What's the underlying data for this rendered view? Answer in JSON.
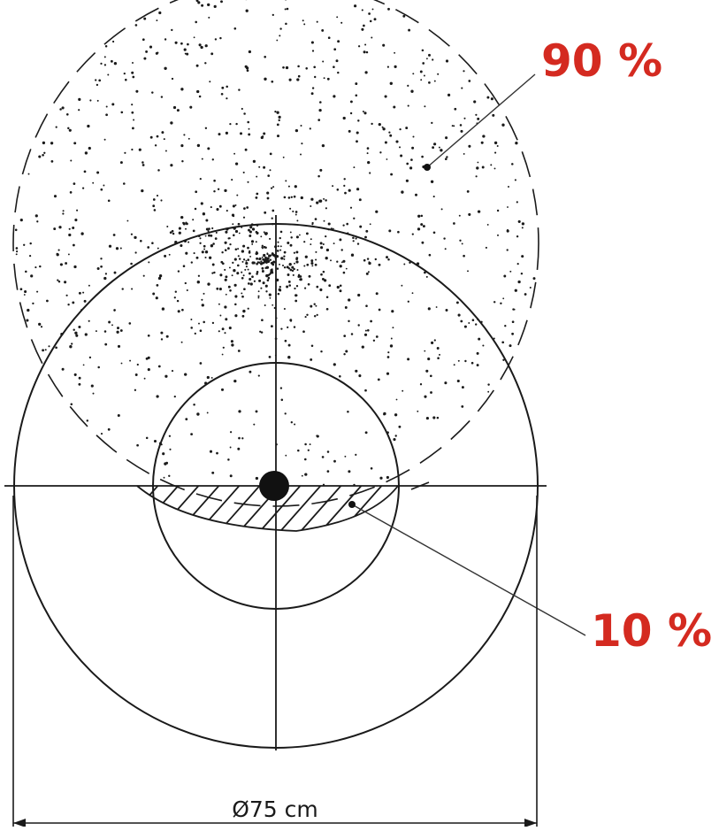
{
  "labels": {
    "upper_percent": "90 %",
    "lower_percent": "10 %",
    "diameter": "Ø75 cm"
  },
  "colors": {
    "accent": "#d42a20",
    "line": "#1a1a1a",
    "background": "#ffffff"
  }
}
